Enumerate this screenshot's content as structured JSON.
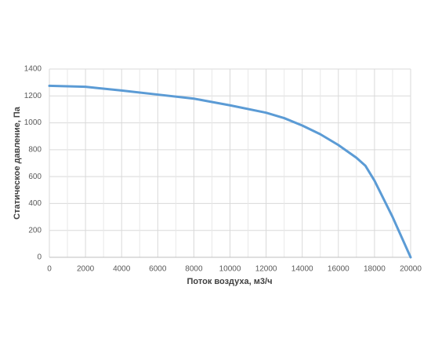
{
  "chart_data": {
    "type": "line",
    "x_label": "Поток воздуха, м3/ч",
    "y_label": "Статическое давление, Па",
    "x": [
      0,
      2000,
      4000,
      6000,
      8000,
      10000,
      12000,
      13000,
      14000,
      15000,
      16000,
      17000,
      17500,
      18000,
      19000,
      20000
    ],
    "series": [
      {
        "name": "Статическое давление",
        "color": "#5b9bd5",
        "values": [
          1275,
          1268,
          1240,
          1210,
          1180,
          1130,
          1075,
          1035,
          980,
          915,
          835,
          740,
          680,
          570,
          300,
          0
        ]
      }
    ],
    "xlim": [
      0,
      20000
    ],
    "xticks": [
      0,
      2000,
      4000,
      6000,
      8000,
      10000,
      12000,
      14000,
      16000,
      18000,
      20000
    ],
    "ylim": [
      0,
      1400
    ],
    "yticks": [
      0,
      200,
      400,
      600,
      800,
      1000,
      1200,
      1400
    ],
    "grid": true
  }
}
